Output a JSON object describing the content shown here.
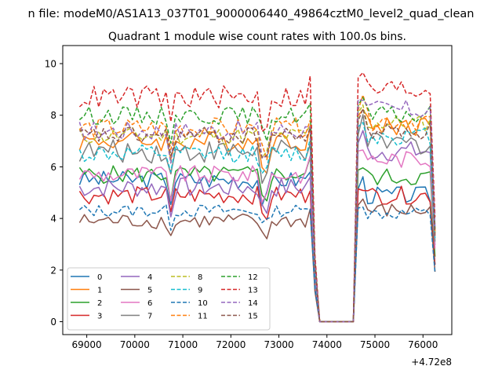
{
  "chart_data": {
    "type": "line",
    "suptitle": "n file: modeM0/AS1A13_037T01_9000006440_49864cztM0_level2_quad_clean",
    "title": "Quadrant 1 module wise count rates with 100.0s bins.",
    "xlabel": "",
    "ylabel": "",
    "x_offset_label": "+4.72e8",
    "xlim": [
      68500,
      76600
    ],
    "ylim": [
      -0.5,
      10.7
    ],
    "x_ticks": [
      69000,
      70000,
      71000,
      72000,
      73000,
      74000,
      75000,
      76000
    ],
    "x_tick_labels": [
      "69000",
      "70000",
      "71000",
      "72000",
      "73000",
      "74000",
      "75000",
      "76000"
    ],
    "y_ticks": [
      0,
      2,
      4,
      6,
      8,
      10
    ],
    "y_tick_labels": [
      "0",
      "2",
      "4",
      "6",
      "8",
      "10"
    ],
    "grid": false,
    "legend_placement": "lower-left",
    "legend_columns": 4,
    "time_axis": {
      "start": 68850,
      "end": 76250,
      "bin_seconds": 100,
      "gap_start": 73850,
      "gap_end": 74550
    },
    "series": [
      {
        "name": "0",
        "color": "#1f77b4",
        "dash": "solid",
        "level_a": 5.5,
        "level_b": 4.9,
        "amp": 0.35
      },
      {
        "name": "1",
        "color": "#ff7f0e",
        "dash": "solid",
        "level_a": 7.0,
        "level_b": 7.6,
        "amp": 0.4
      },
      {
        "name": "2",
        "color": "#2ca02c",
        "dash": "solid",
        "level_a": 5.7,
        "level_b": 5.6,
        "amp": 0.35
      },
      {
        "name": "3",
        "color": "#d62728",
        "dash": "solid",
        "level_a": 4.9,
        "level_b": 4.9,
        "amp": 0.35
      },
      {
        "name": "4",
        "color": "#9467bd",
        "dash": "solid",
        "level_a": 5.2,
        "level_b": 6.6,
        "amp": 0.4
      },
      {
        "name": "5",
        "color": "#8c564b",
        "dash": "solid",
        "level_a": 3.9,
        "level_b": 4.3,
        "amp": 0.3
      },
      {
        "name": "6",
        "color": "#e377c2",
        "dash": "solid",
        "level_a": 5.7,
        "level_b": 6.3,
        "amp": 0.35
      },
      {
        "name": "7",
        "color": "#7f7f7f",
        "dash": "solid",
        "level_a": 6.6,
        "level_b": 6.9,
        "amp": 0.45
      },
      {
        "name": "8",
        "color": "#bcbd22",
        "dash": "dashed",
        "level_a": 7.2,
        "level_b": 7.7,
        "amp": 0.35
      },
      {
        "name": "9",
        "color": "#17becf",
        "dash": "dashed",
        "level_a": 6.5,
        "level_b": 7.2,
        "amp": 0.35
      },
      {
        "name": "10",
        "color": "#1f77b4",
        "dash": "dashed",
        "level_a": 4.3,
        "level_b": 4.2,
        "amp": 0.25
      },
      {
        "name": "11",
        "color": "#ff7f0e",
        "dash": "dashed",
        "level_a": 7.5,
        "level_b": 7.8,
        "amp": 0.4
      },
      {
        "name": "12",
        "color": "#2ca02c",
        "dash": "dashed",
        "level_a": 8.0,
        "level_b": 8.0,
        "amp": 0.35
      },
      {
        "name": "13",
        "color": "#d62728",
        "dash": "dashed",
        "level_a": 8.7,
        "level_b": 9.0,
        "amp": 0.45
      },
      {
        "name": "14",
        "color": "#9467bd",
        "dash": "dashed",
        "level_a": 7.4,
        "level_b": 8.2,
        "amp": 0.4
      },
      {
        "name": "15",
        "color": "#8c564b",
        "dash": "dashed",
        "level_a": 7.2,
        "level_b": 7.4,
        "amp": 0.35
      }
    ]
  }
}
